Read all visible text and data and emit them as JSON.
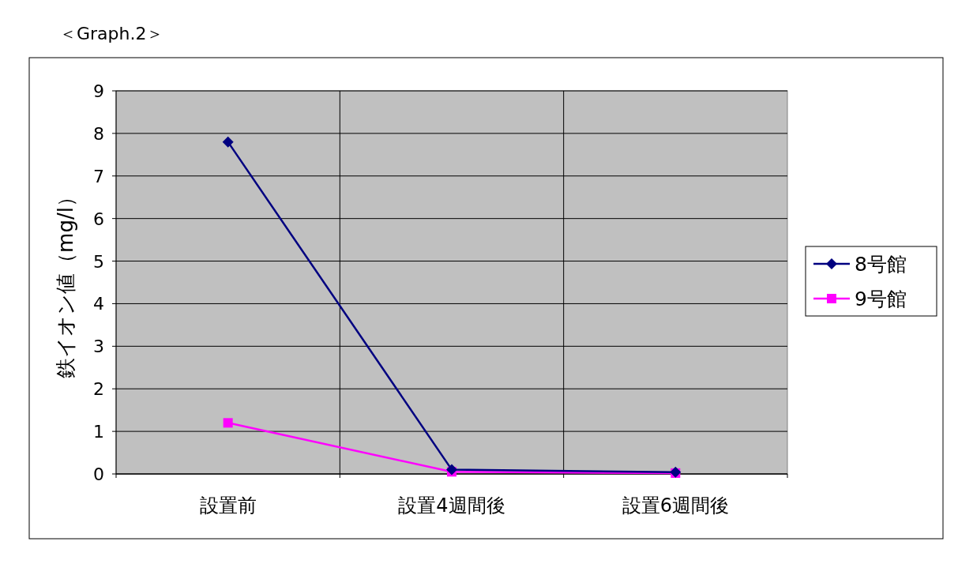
{
  "chart_data": {
    "type": "line",
    "title": "＜Graph.2＞",
    "ylabel": "鉄イオン値（mg/l）",
    "categories": [
      "設置前",
      "設置4週間後",
      "設置6週間後"
    ],
    "series": [
      {
        "name": "8号館",
        "color": "#000080",
        "marker": "diamond",
        "values": [
          7.8,
          0.1,
          0.04
        ]
      },
      {
        "name": "9号館",
        "color": "#ff00ff",
        "marker": "square",
        "values": [
          1.2,
          0.05,
          0.02
        ]
      }
    ],
    "ylim": [
      0,
      9
    ],
    "yticks": [
      0,
      1,
      2,
      3,
      4,
      5,
      6,
      7,
      8,
      9
    ],
    "grid": true,
    "legend": "right"
  }
}
